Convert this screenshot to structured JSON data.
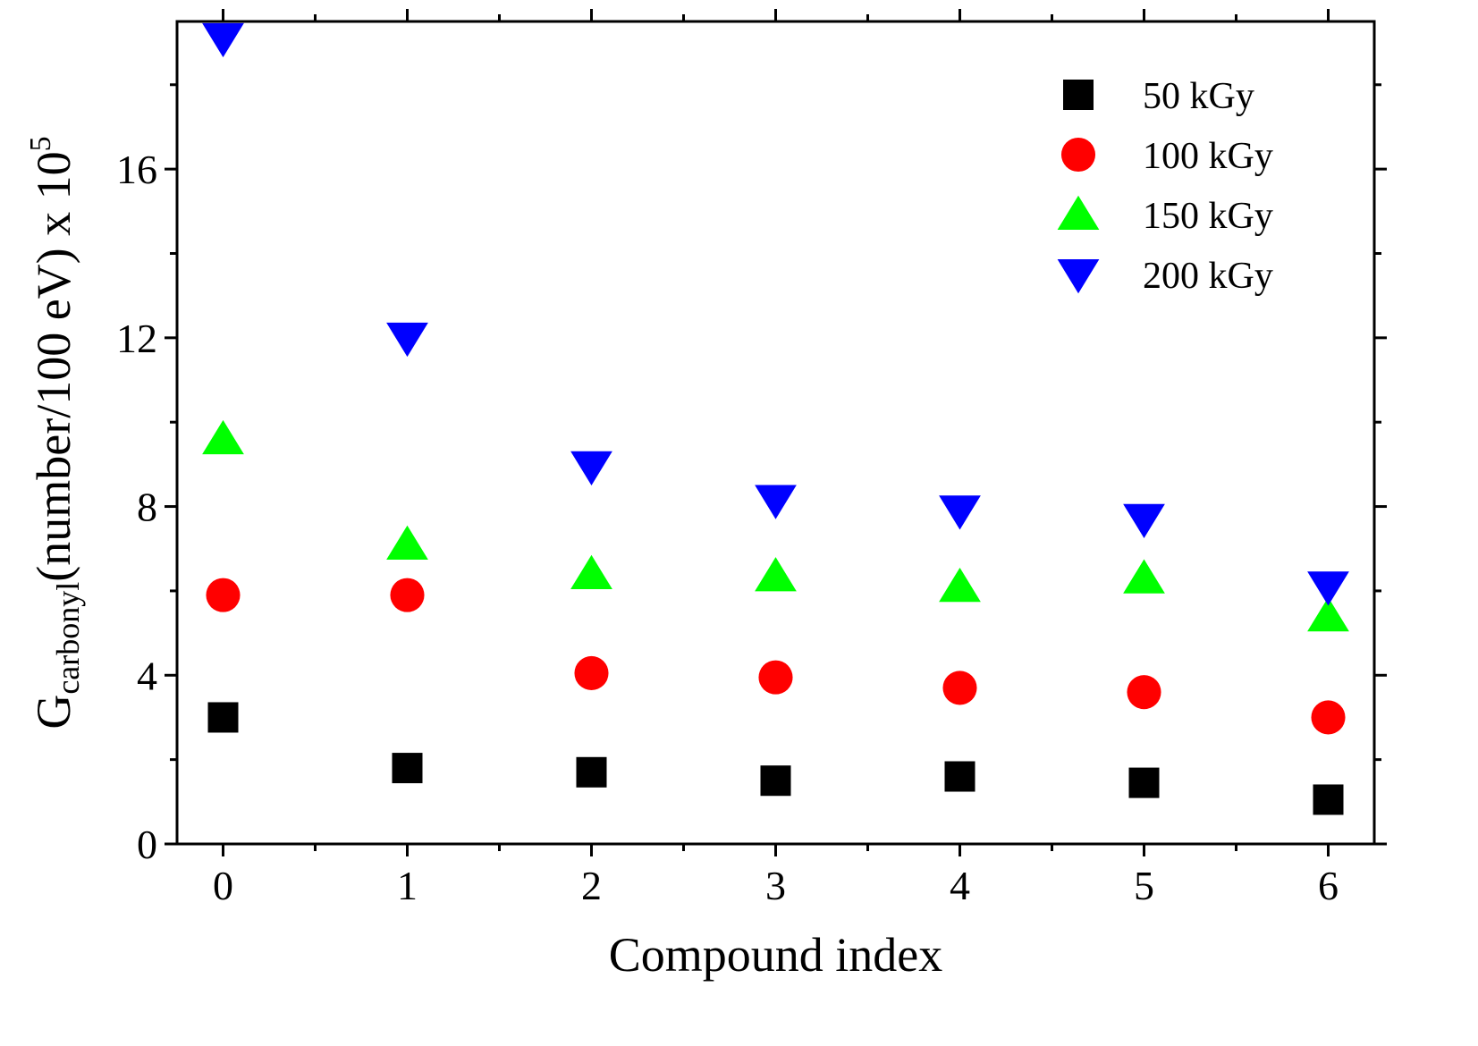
{
  "chart_data": {
    "type": "scatter",
    "xlabel": "Compound index",
    "ylabel": {
      "main": "G",
      "subscript": "carbonyl",
      "units": "(number/100 eV) x 10",
      "superscript": "5"
    },
    "xlim": [
      -0.25,
      6.25
    ],
    "ylim": [
      0,
      19.5
    ],
    "x_ticks": [
      0,
      1,
      2,
      3,
      4,
      5,
      6
    ],
    "x_minor_ticks": [
      0.5,
      1.5,
      2.5,
      3.5,
      4.5,
      5.5
    ],
    "y_ticks": [
      0,
      4,
      8,
      12,
      16
    ],
    "y_minor_ticks": [
      2,
      6,
      10,
      14,
      18
    ],
    "grid": false,
    "legend_position": "top-right",
    "x": [
      0,
      1,
      2,
      3,
      4,
      5,
      6
    ],
    "series": [
      {
        "name": "50 kGy",
        "marker": "square",
        "color": "#000000",
        "values": [
          3.0,
          1.8,
          1.7,
          1.5,
          1.6,
          1.45,
          1.05
        ]
      },
      {
        "name": "100 kGy",
        "marker": "circle",
        "color": "#ff0000",
        "values": [
          5.9,
          5.9,
          4.05,
          3.95,
          3.7,
          3.6,
          3.0
        ]
      },
      {
        "name": "150 kGy",
        "marker": "triangle-up",
        "color": "#00ff00",
        "values": [
          9.6,
          7.1,
          6.4,
          6.35,
          6.1,
          6.3,
          5.4
        ]
      },
      {
        "name": "200 kGy",
        "marker": "triangle-down",
        "color": "#0000ff",
        "values": [
          19.1,
          12.0,
          8.95,
          8.15,
          7.9,
          7.7,
          6.1
        ]
      }
    ]
  }
}
